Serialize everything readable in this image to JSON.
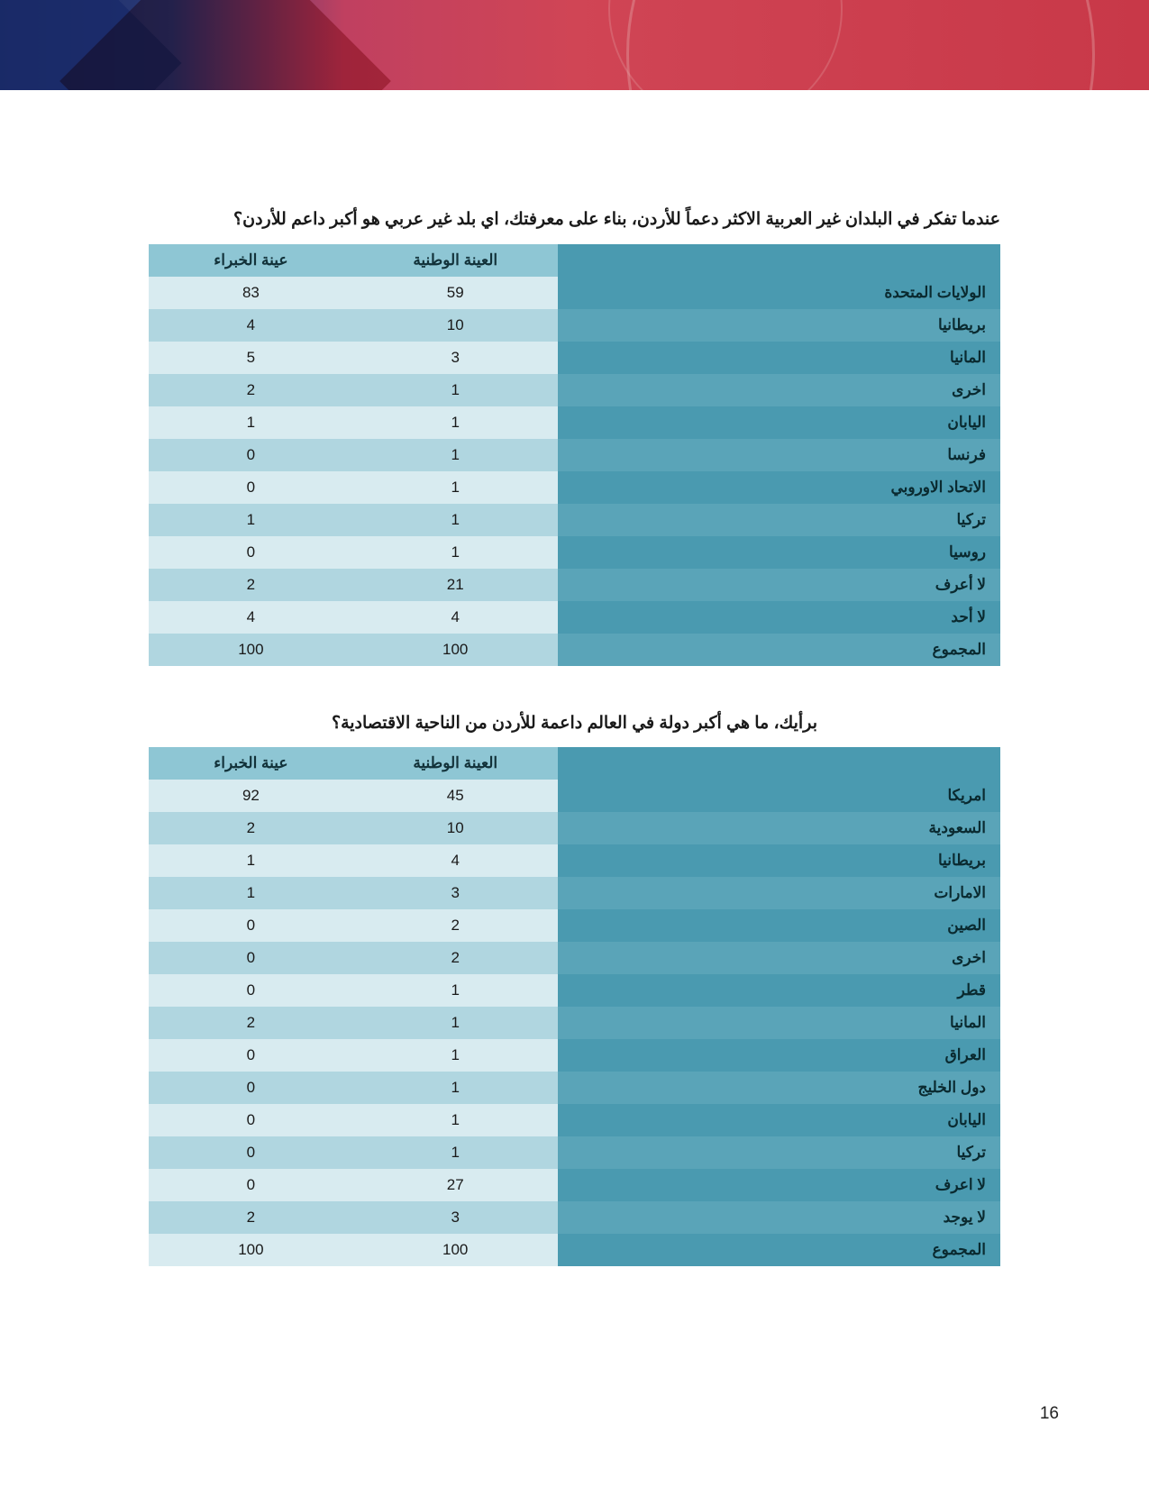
{
  "page_number": "16",
  "colors": {
    "header_label_bg": "#4a9ab0",
    "header_label_fg": "#0d4a5a",
    "header_num_bg": "#8ec6d4",
    "header_num_fg": "#12323a",
    "label_odd_bg": "#4a9ab0",
    "label_even_bg": "#5aa4b8",
    "label_fg": "#0a2a30",
    "num_odd_bg": "#d8ebf0",
    "num_even_bg": "#b0d6e0",
    "num_fg": "#1a1a1a"
  },
  "table1": {
    "question": "عندما تفكر في البلدان غير العربية الاكثر دعماً للأردن، بناء على معرفتك، اي بلد غير عربي هو أكبر داعم للأردن؟",
    "headers": {
      "label": "",
      "national": "العينة الوطنية",
      "expert": "عينة الخبراء"
    },
    "rows": [
      {
        "label": "الولايات المتحدة",
        "national": "59",
        "expert": "83"
      },
      {
        "label": "بريطانيا",
        "national": "10",
        "expert": "4"
      },
      {
        "label": "المانيا",
        "national": "3",
        "expert": "5"
      },
      {
        "label": "اخرى",
        "national": "1",
        "expert": "2"
      },
      {
        "label": "اليابان",
        "national": "1",
        "expert": "1"
      },
      {
        "label": "فرنسا",
        "national": "1",
        "expert": "0"
      },
      {
        "label": "الاتحاد الاوروبي",
        "national": "1",
        "expert": "0"
      },
      {
        "label": "تركيا",
        "national": "1",
        "expert": "1"
      },
      {
        "label": "روسيا",
        "national": "1",
        "expert": "0"
      },
      {
        "label": "لا أعرف",
        "national": "21",
        "expert": "2"
      },
      {
        "label": "لا أحد",
        "national": "4",
        "expert": "4"
      },
      {
        "label": "المجموع",
        "national": "100",
        "expert": "100"
      }
    ]
  },
  "table2": {
    "question": "برأيك، ما هي أكبر دولة في العالم داعمة للأردن من الناحية الاقتصادية؟",
    "headers": {
      "label": "",
      "national": "العينة الوطنية",
      "expert": "عينة الخبراء"
    },
    "rows": [
      {
        "label": "امريكا",
        "national": "45",
        "expert": "92"
      },
      {
        "label": "السعودية",
        "national": "10",
        "expert": "2"
      },
      {
        "label": "بريطانيا",
        "national": "4",
        "expert": "1"
      },
      {
        "label": "الامارات",
        "national": "3",
        "expert": "1"
      },
      {
        "label": "الصين",
        "national": "2",
        "expert": "0"
      },
      {
        "label": "اخرى",
        "national": "2",
        "expert": "0"
      },
      {
        "label": "قطر",
        "national": "1",
        "expert": "0"
      },
      {
        "label": "المانيا",
        "national": "1",
        "expert": "2"
      },
      {
        "label": "العراق",
        "national": "1",
        "expert": "0"
      },
      {
        "label": "دول الخليج",
        "national": "1",
        "expert": "0"
      },
      {
        "label": "اليابان",
        "national": "1",
        "expert": "0"
      },
      {
        "label": "تركيا",
        "national": "1",
        "expert": "0"
      },
      {
        "label": "لا اعرف",
        "national": "27",
        "expert": "0"
      },
      {
        "label": "لا يوجد",
        "national": "3",
        "expert": "2"
      },
      {
        "label": "المجموع",
        "national": "100",
        "expert": "100"
      }
    ]
  }
}
